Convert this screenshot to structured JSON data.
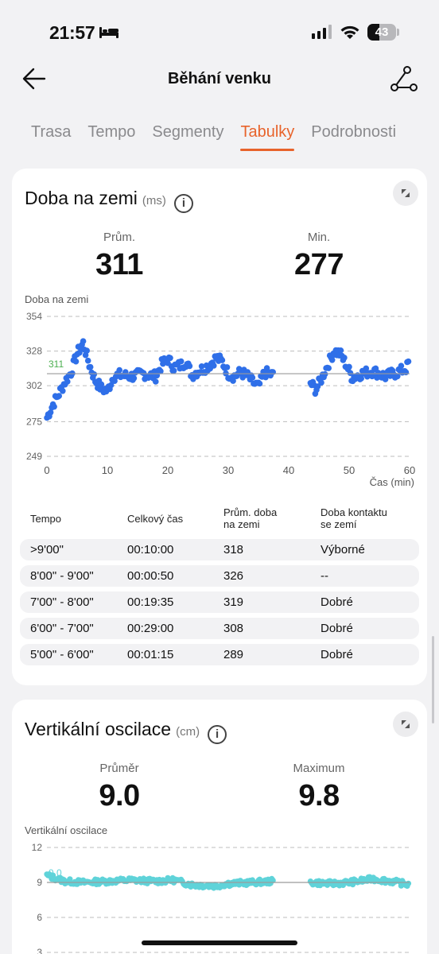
{
  "status_bar": {
    "time": "21:57",
    "battery": "43",
    "battery_level": 0.43,
    "signal_bars": 3
  },
  "header": {
    "title": "Běhání venku"
  },
  "tabs": [
    {
      "label": "Trasa",
      "active": false
    },
    {
      "label": "Tempo",
      "active": false
    },
    {
      "label": "Segmenty",
      "active": false
    },
    {
      "label": "Tabulky",
      "active": true
    },
    {
      "label": "Podrobnosti",
      "active": false
    }
  ],
  "ground_time": {
    "title": "Doba na zemi",
    "unit": "(ms)",
    "avg_label": "Prům.",
    "avg_value": "311",
    "min_label": "Min.",
    "min_value": "277",
    "chart_label": "Doba na zemi",
    "x_axis_label": "Čas (min)"
  },
  "table": {
    "headers": [
      "Tempo",
      "Celkový čas",
      "Prům. doba na zemi",
      "Doba kontaktu se zemí"
    ],
    "header_lines": [
      [
        "Tempo"
      ],
      [
        "Celkový čas"
      ],
      [
        "Prům. doba",
        "na zemi"
      ],
      [
        "Doba kontaktu",
        "se zemí"
      ]
    ],
    "rows": [
      [
        ">9'00\"",
        "00:10:00",
        "318",
        "Výborné"
      ],
      [
        "8'00\" - 9'00\"",
        "00:00:50",
        "326",
        "--"
      ],
      [
        "7'00\" - 8'00\"",
        "00:19:35",
        "319",
        "Dobré"
      ],
      [
        "6'00\" - 7'00\"",
        "00:29:00",
        "308",
        "Dobré"
      ],
      [
        "5'00\" - 6'00\"",
        "00:01:15",
        "289",
        "Dobré"
      ]
    ]
  },
  "vertical_oscillation": {
    "title": "Vertikální oscilace",
    "unit": "(cm)",
    "avg_label": "Průměr",
    "avg_value": "9.0",
    "max_label": "Maximum",
    "max_value": "9.8",
    "chart_label": "Vertikální oscilace"
  },
  "chart_data": [
    {
      "type": "scatter",
      "title": "Doba na zemi",
      "xlabel": "Čas (min)",
      "ylabel": "",
      "xlim": [
        0,
        60
      ],
      "ylim": [
        249,
        354
      ],
      "x_ticks": [
        0,
        10,
        20,
        30,
        40,
        50,
        60
      ],
      "y_ticks": [
        249,
        275,
        302,
        328,
        354
      ],
      "average_line": 311,
      "average_label": "311",
      "color": "#2f6fe8",
      "avg_color": "#4caf50",
      "gap": [
        37.5,
        43.5
      ],
      "anchors": [
        [
          0,
          278
        ],
        [
          1,
          288
        ],
        [
          2,
          296
        ],
        [
          3,
          305
        ],
        [
          4,
          312
        ],
        [
          5,
          326
        ],
        [
          6,
          334
        ],
        [
          7,
          318
        ],
        [
          8,
          306
        ],
        [
          9,
          300
        ],
        [
          10,
          298
        ],
        [
          11,
          309
        ],
        [
          12,
          310
        ],
        [
          14,
          309
        ],
        [
          16,
          311
        ],
        [
          18,
          309
        ],
        [
          19,
          318
        ],
        [
          20,
          322
        ],
        [
          21,
          316
        ],
        [
          22,
          317
        ],
        [
          23,
          320
        ],
        [
          24,
          310
        ],
        [
          25,
          313
        ],
        [
          26,
          315
        ],
        [
          27,
          318
        ],
        [
          28,
          323
        ],
        [
          29,
          320
        ],
        [
          30,
          311
        ],
        [
          31,
          309
        ],
        [
          32,
          312
        ],
        [
          33,
          310
        ],
        [
          34,
          305
        ],
        [
          35,
          301
        ],
        [
          36,
          312
        ],
        [
          37.4,
          310
        ],
        [
          43.6,
          304
        ],
        [
          44.5,
          299
        ],
        [
          45.5,
          308
        ],
        [
          46.5,
          318
        ],
        [
          47.5,
          328
        ],
        [
          48.5,
          326
        ],
        [
          49.5,
          318
        ],
        [
          50.5,
          308
        ],
        [
          52,
          311
        ],
        [
          54,
          313
        ],
        [
          56,
          309
        ],
        [
          58,
          312
        ],
        [
          59.5,
          315
        ],
        [
          60,
          322
        ]
      ]
    },
    {
      "type": "scatter",
      "title": "Vertikální oscilace",
      "xlim": [
        0,
        60
      ],
      "ylim": [
        3,
        12
      ],
      "y_ticks": [
        3,
        6,
        9,
        12
      ],
      "average_line": 9.0,
      "average_label": "9.0",
      "color": "#5fd3d9",
      "gap": [
        37.5,
        43.5
      ],
      "anchors": [
        [
          0,
          9.6
        ],
        [
          3,
          9.1
        ],
        [
          6,
          9.0
        ],
        [
          10,
          9.1
        ],
        [
          14,
          9.2
        ],
        [
          18,
          9.1
        ],
        [
          21,
          9.2
        ],
        [
          24,
          8.8
        ],
        [
          28,
          8.7
        ],
        [
          30,
          8.9
        ],
        [
          34,
          9.0
        ],
        [
          37.4,
          9.1
        ],
        [
          43.6,
          9.0
        ],
        [
          47,
          8.9
        ],
        [
          50,
          9.0
        ],
        [
          54,
          9.3
        ],
        [
          57,
          9.1
        ],
        [
          60,
          8.8
        ]
      ]
    }
  ]
}
